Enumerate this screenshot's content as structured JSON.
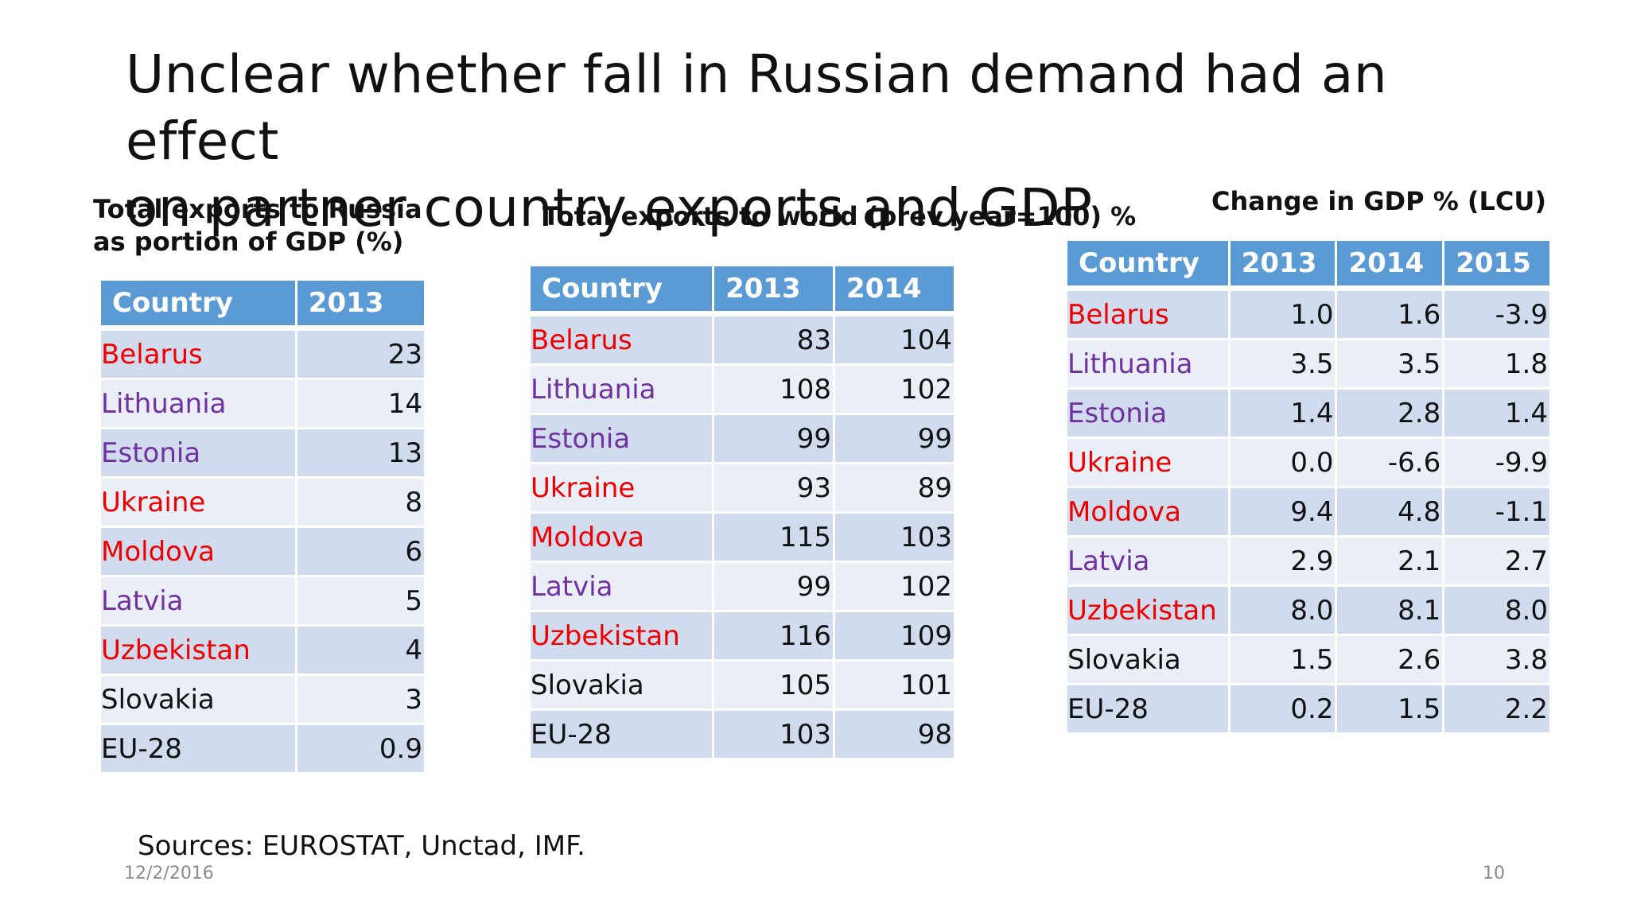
{
  "title_lines": [
    "Unclear whether fall in Russian demand had an effect",
    "on partner country exports and GDP"
  ],
  "colors": {
    "red": "#ee0000",
    "purple": "#7030a0",
    "black": "#111111",
    "header_bg": "#5b9bd5"
  },
  "table1": {
    "caption": "Total exports to Russia as portion of GDP (%)",
    "headers": [
      "Country",
      "2013"
    ],
    "rows": [
      {
        "country": "Belarus",
        "color": "red",
        "values": [
          "23"
        ]
      },
      {
        "country": "Lithuania",
        "color": "purple",
        "values": [
          "14"
        ]
      },
      {
        "country": "Estonia",
        "color": "purple",
        "values": [
          "13"
        ]
      },
      {
        "country": "Ukraine",
        "color": "red",
        "values": [
          "8"
        ]
      },
      {
        "country": "Moldova",
        "color": "red",
        "values": [
          "6"
        ]
      },
      {
        "country": "Latvia",
        "color": "purple",
        "values": [
          "5"
        ]
      },
      {
        "country": "Uzbekistan",
        "color": "red",
        "values": [
          "4"
        ]
      },
      {
        "country": "Slovakia",
        "color": "black",
        "values": [
          "3"
        ]
      },
      {
        "country": "EU-28",
        "color": "black",
        "values": [
          "0.9"
        ]
      }
    ]
  },
  "table2": {
    "caption": "Total exports to world (prev year=100) %",
    "headers": [
      "Country",
      "2013",
      "2014"
    ],
    "rows": [
      {
        "country": "Belarus",
        "color": "red",
        "values": [
          "83",
          "104"
        ]
      },
      {
        "country": "Lithuania",
        "color": "purple",
        "values": [
          "108",
          "102"
        ]
      },
      {
        "country": "Estonia",
        "color": "purple",
        "values": [
          "99",
          "99"
        ]
      },
      {
        "country": "Ukraine",
        "color": "red",
        "values": [
          "93",
          "89"
        ]
      },
      {
        "country": "Moldova",
        "color": "red",
        "values": [
          "115",
          "103"
        ]
      },
      {
        "country": "Latvia",
        "color": "purple",
        "values": [
          "99",
          "102"
        ]
      },
      {
        "country": "Uzbekistan",
        "color": "red",
        "values": [
          "116",
          "109"
        ]
      },
      {
        "country": "Slovakia",
        "color": "black",
        "values": [
          "105",
          "101"
        ]
      },
      {
        "country": "EU-28",
        "color": "black",
        "values": [
          "103",
          "98"
        ]
      }
    ]
  },
  "table3": {
    "caption": "Change in GDP % (LCU)",
    "headers": [
      "Country",
      "2013",
      "2014",
      "2015"
    ],
    "rows": [
      {
        "country": "Belarus",
        "color": "red",
        "values": [
          "1.0",
          "1.6",
          "-3.9"
        ]
      },
      {
        "country": "Lithuania",
        "color": "purple",
        "values": [
          "3.5",
          "3.5",
          "1.8"
        ]
      },
      {
        "country": "Estonia",
        "color": "purple",
        "values": [
          "1.4",
          "2.8",
          "1.4"
        ]
      },
      {
        "country": "Ukraine",
        "color": "red",
        "values": [
          "0.0",
          "-6.6",
          "-9.9"
        ]
      },
      {
        "country": "Moldova",
        "color": "red",
        "values": [
          "9.4",
          "4.8",
          "-1.1"
        ]
      },
      {
        "country": "Latvia",
        "color": "purple",
        "values": [
          "2.9",
          "2.1",
          "2.7"
        ]
      },
      {
        "country": "Uzbekistan",
        "color": "red",
        "values": [
          "8.0",
          "8.1",
          "8.0"
        ]
      },
      {
        "country": "Slovakia",
        "color": "black",
        "values": [
          "1.5",
          "2.6",
          "3.8"
        ]
      },
      {
        "country": "EU-28",
        "color": "black",
        "values": [
          "0.2",
          "1.5",
          "2.2"
        ]
      }
    ]
  },
  "footer": {
    "sources": "Sources: EUROSTAT, Unctad, IMF.",
    "date": "12/2/2016",
    "page": "10"
  }
}
